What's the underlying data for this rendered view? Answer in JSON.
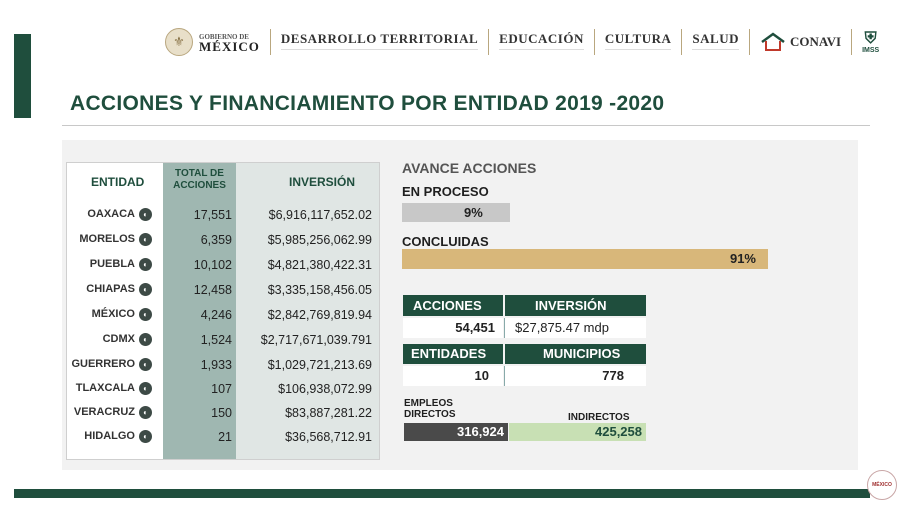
{
  "header": {
    "gobierno_small": "GOBIERNO DE",
    "gobierno_big": "MÉXICO",
    "items": [
      "DESARROLLO TERRITORIAL",
      "EDUCACIÓN",
      "CULTURA",
      "SALUD"
    ],
    "conavi": "CONAVI",
    "imss": "IMSS"
  },
  "title": "ACCIONES Y FINANCIAMIENTO POR ENTIDAD 2019 -2020",
  "table": {
    "headers": {
      "entidad": "ENTIDAD",
      "acciones_1": "TOTAL DE",
      "acciones_2": "ACCIONES",
      "inversion": "INVERSIÓN"
    },
    "rows": [
      {
        "entidad": "OAXACA",
        "acciones": "17,551",
        "inversion": "$6,916,117,652.02"
      },
      {
        "entidad": "MORELOS",
        "acciones": "6,359",
        "inversion": "$5,985,256,062.99"
      },
      {
        "entidad": "PUEBLA",
        "acciones": "10,102",
        "inversion": "$4,821,380,422.31"
      },
      {
        "entidad": "CHIAPAS",
        "acciones": "12,458",
        "inversion": "$3,335,158,456.05"
      },
      {
        "entidad": "MÉXICO",
        "acciones": "4,246",
        "inversion": "$2,842,769,819.94"
      },
      {
        "entidad": "CDMX",
        "acciones": "1,524",
        "inversion": "$2,717,671,039.791"
      },
      {
        "entidad": "GUERRERO",
        "acciones": "1,933",
        "inversion": "$1,029,721,213.69"
      },
      {
        "entidad": "TLAXCALA",
        "acciones": "107",
        "inversion": "$106,938,072.99"
      },
      {
        "entidad": "VERACRUZ",
        "acciones": "150",
        "inversion": "$83,887,281.22"
      },
      {
        "entidad": "HIDALGO",
        "acciones": "21",
        "inversion": "$36,568,712.91"
      }
    ]
  },
  "avance": {
    "title": "AVANCE ACCIONES",
    "proceso_label": "EN PROCESO",
    "proceso_value": "9%",
    "concluidas_label": "CONCLUIDAS",
    "concluidas_value": "91%"
  },
  "summary": {
    "acciones_label": "ACCIONES",
    "inversion_label": "INVERSIÓN",
    "acciones_value": "54,451",
    "inversion_value": "$27,875.47 mdp",
    "entidades_label": "ENTIDADES",
    "municipios_label": "MUNICIPIOS",
    "entidades_value": "10",
    "municipios_value": "778"
  },
  "empleos": {
    "directos_label_1": "EMPLEOS",
    "directos_label_2": "DIRECTOS",
    "indirectos_label": "INDIRECTOS",
    "directos_value": "316,924",
    "indirectos_value": "425,258"
  },
  "colors": {
    "dark_green": "#1f4e3d",
    "gold_bar": "#d8b77a",
    "gray_bar": "#c8c8c8",
    "light_green": "#c8e0b4",
    "dark_gray": "#4a4a4a"
  }
}
